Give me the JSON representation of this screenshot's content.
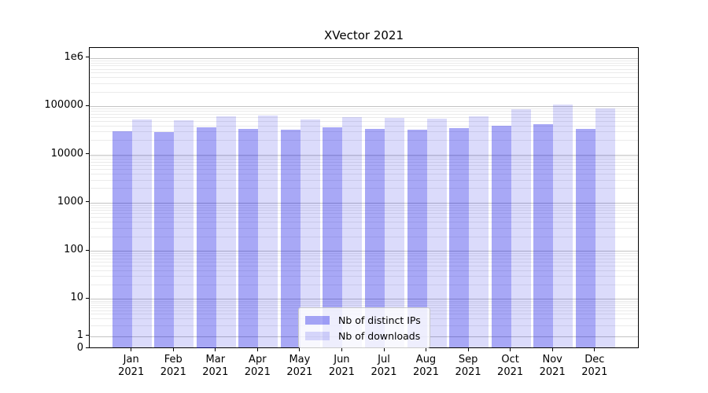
{
  "chart_data": {
    "type": "bar",
    "title": "XVector 2021",
    "y_scale": "symlog",
    "grid": "horizontal major+minor",
    "legend_position": "lower center",
    "ylim": [
      0,
      1000000
    ],
    "y_ticks": [
      {
        "label": "1e6",
        "value": 1000000
      },
      {
        "label": "100000",
        "value": 100000
      },
      {
        "label": "10000",
        "value": 10000
      },
      {
        "label": "1000",
        "value": 1000
      },
      {
        "label": "100",
        "value": 100
      },
      {
        "label": "10",
        "value": 10
      },
      {
        "label": "1",
        "value": 1
      },
      {
        "label": "0",
        "value": 0
      }
    ],
    "categories": [
      {
        "month": "Jan",
        "year": "2021"
      },
      {
        "month": "Feb",
        "year": "2021"
      },
      {
        "month": "Mar",
        "year": "2021"
      },
      {
        "month": "Apr",
        "year": "2021"
      },
      {
        "month": "May",
        "year": "2021"
      },
      {
        "month": "Jun",
        "year": "2021"
      },
      {
        "month": "Jul",
        "year": "2021"
      },
      {
        "month": "Aug",
        "year": "2021"
      },
      {
        "month": "Sep",
        "year": "2021"
      },
      {
        "month": "Oct",
        "year": "2021"
      },
      {
        "month": "Nov",
        "year": "2021"
      },
      {
        "month": "Dec",
        "year": "2021"
      }
    ],
    "series": [
      {
        "name": "Nb of distinct IPs",
        "color": "rgba(0,0,230,0.34)",
        "values": [
          30000,
          29500,
          36500,
          34000,
          33000,
          36500,
          34000,
          32500,
          35500,
          40000,
          42000,
          33500
        ]
      },
      {
        "name": "Nb of downloads",
        "color": "rgba(0,0,230,0.14)",
        "values": [
          53000,
          50500,
          62000,
          65000,
          53500,
          59500,
          58000,
          55500,
          62000,
          88000,
          107000,
          91500
        ]
      }
    ]
  }
}
